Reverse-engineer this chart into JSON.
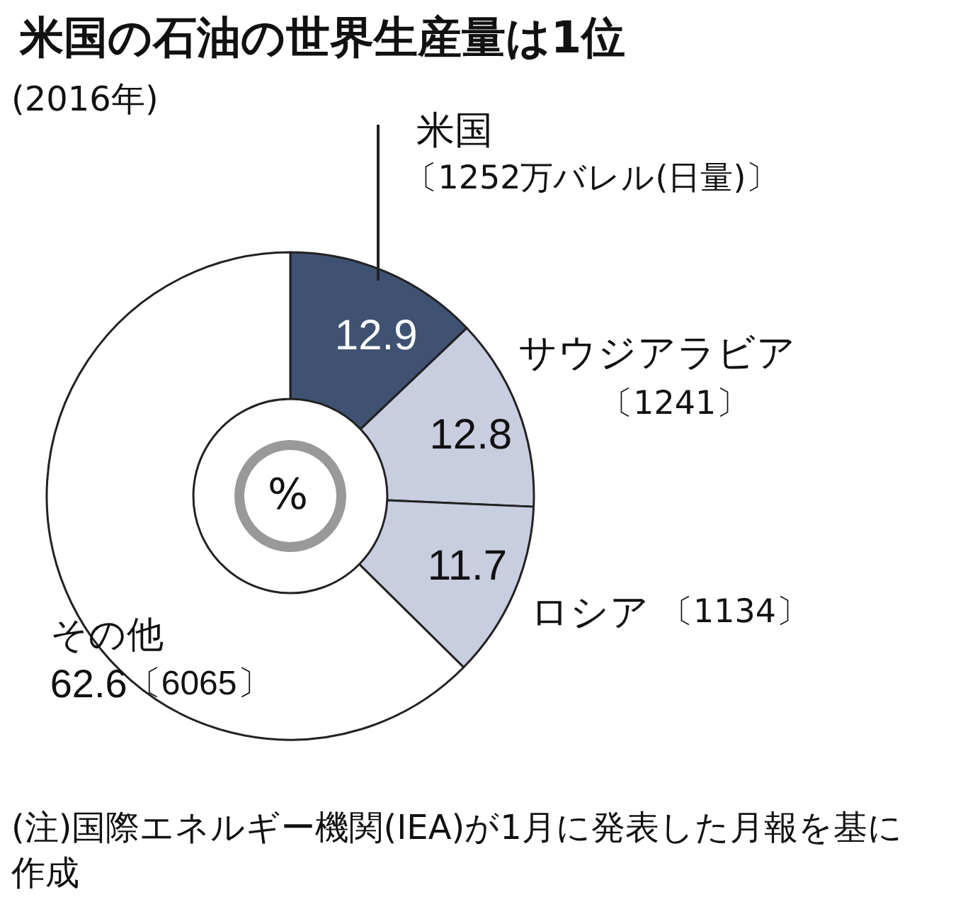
{
  "chart_data": {
    "type": "donut",
    "title": "米国の石油の世界生産量は1位",
    "subtitle": "(2016年)",
    "categories": [
      "米国",
      "サウジアラビア",
      "ロシア",
      "その他"
    ],
    "values": [
      12.9,
      12.8,
      11.7,
      62.6
    ],
    "colors": [
      "#3f5272",
      "#c9cde0",
      "#c9cde0",
      "#ffffff"
    ],
    "data_labels": true,
    "legend": false,
    "annotations": [
      "%",
      "〔1252万バレル(日量)〕",
      "〔1241〕",
      "〔1134〕",
      "〔6065〕",
      "(注)国際エネルギー機関(IEA)が1月に発表した月報を基に作成"
    ]
  }
}
